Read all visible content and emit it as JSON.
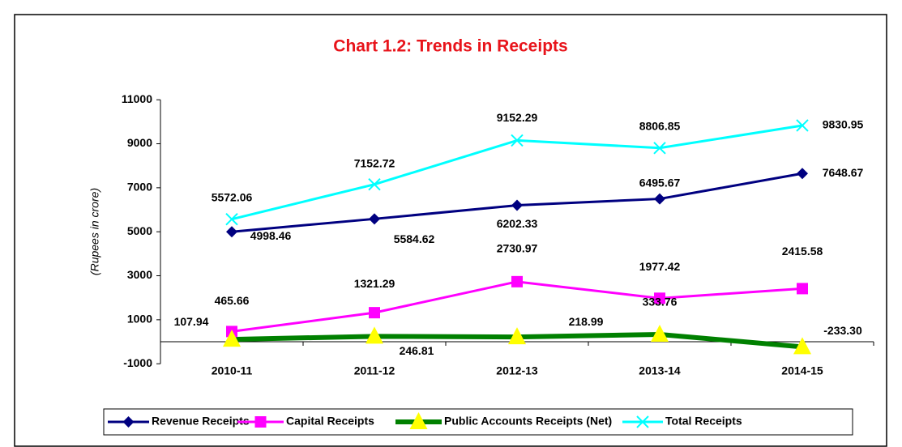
{
  "chart_data": {
    "type": "line",
    "title": "Chart 1.2: Trends in Receipts",
    "y_label": "(Rupees in crore)",
    "categories": [
      "2010-11",
      "2011-12",
      "2012-13",
      "2013-14",
      "2014-15"
    ],
    "ylim": [
      -1000,
      11000
    ],
    "yticks": [
      -1000,
      1000,
      3000,
      5000,
      7000,
      9000,
      11000
    ],
    "grid": false,
    "legend": "bottom",
    "series": [
      {
        "name": "Revenue Receipts",
        "color": "#000080",
        "marker": "diamond",
        "marker_color": "#000080",
        "values": [
          4998.46,
          5584.62,
          6202.33,
          6495.67,
          7648.67
        ]
      },
      {
        "name": "Capital Receipts",
        "color": "#FF00FF",
        "marker": "square",
        "marker_color": "#FF00FF",
        "values": [
          465.66,
          1321.29,
          2730.97,
          1977.42,
          2415.58
        ]
      },
      {
        "name": "Public Accounts Receipts (Net)",
        "color": "#008000",
        "marker": "triangle",
        "marker_color": "#FFFF00",
        "values": [
          107.94,
          246.81,
          218.99,
          333.76,
          -233.3
        ],
        "value_labels": [
          "107.94",
          "246.81",
          "218.99",
          "333.76",
          "-233.30"
        ]
      },
      {
        "name": "Total Receipts",
        "color": "#00FFFF",
        "marker": "x",
        "marker_color": "#00FFFF",
        "values": [
          5572.06,
          7152.72,
          9152.29,
          8806.85,
          9830.95
        ]
      }
    ]
  }
}
